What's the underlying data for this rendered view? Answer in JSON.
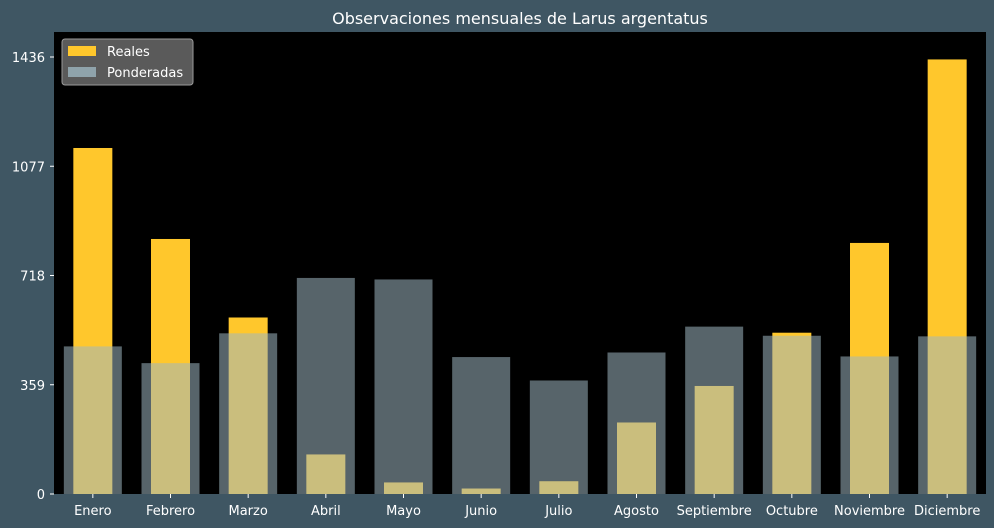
{
  "chart_data": {
    "type": "bar",
    "title": "Observaciones mensuales de Larus argentatus",
    "xlabel": "",
    "ylabel": "",
    "categories": [
      "Enero",
      "Febrero",
      "Marzo",
      "Abril",
      "Mayo",
      "Junio",
      "Julio",
      "Agosto",
      "Septiembre",
      "Octubre",
      "Noviembre",
      "Diciembre"
    ],
    "series": [
      {
        "name": "Reales",
        "values": [
          1137,
          838,
          580,
          130,
          38,
          18,
          42,
          235,
          355,
          530,
          825,
          1428
        ]
      },
      {
        "name": "Ponderadas",
        "values": [
          485,
          430,
          528,
          710,
          705,
          450,
          373,
          465,
          550,
          520,
          452,
          518
        ]
      }
    ],
    "yticks": [
      0,
      359,
      718,
      1077,
      1436
    ],
    "ylim": [
      0,
      1436
    ],
    "grid": false,
    "legend_position": "top-left",
    "colors": {
      "Reales": "#ffc72c",
      "Ponderadas": "#9fb7c1",
      "plot_background": "#000000",
      "figure_background": "#3f5663"
    }
  }
}
